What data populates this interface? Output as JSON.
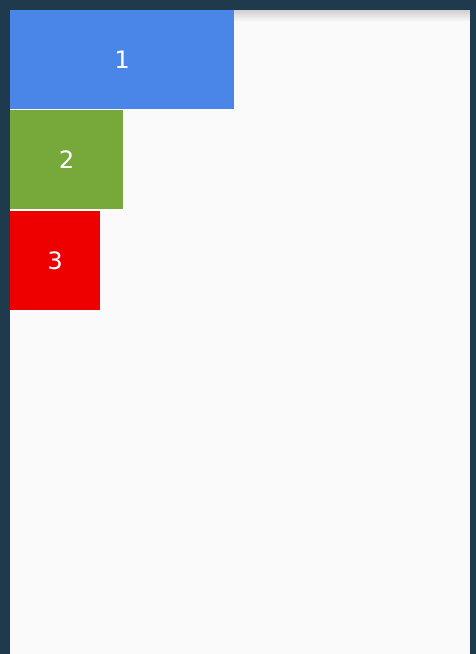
{
  "boxes": [
    {
      "label": "1",
      "color": "#4a86e8"
    },
    {
      "label": "2",
      "color": "#76a83a"
    },
    {
      "label": "3",
      "color": "#ee0000"
    }
  ],
  "colors": {
    "frame": "#1f3a4c",
    "screen_background": "#fafafa",
    "label_text": "#ffffff"
  }
}
